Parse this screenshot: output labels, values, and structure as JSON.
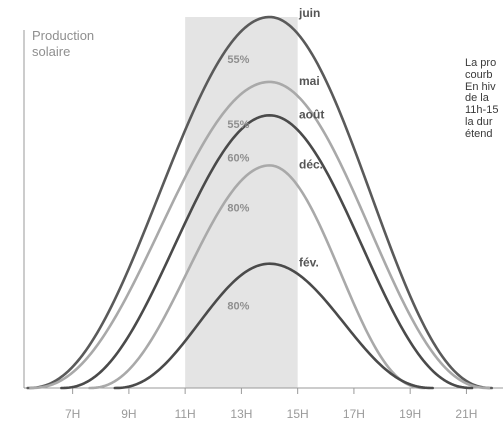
{
  "chart_data": {
    "type": "area",
    "ylabel_lines": [
      "Production",
      "solaire"
    ],
    "x_ticks": [
      {
        "label": "7H",
        "value": 7
      },
      {
        "label": "9H",
        "value": 9
      },
      {
        "label": "11H",
        "value": 11
      },
      {
        "label": "13H",
        "value": 13
      },
      {
        "label": "15H",
        "value": 15
      },
      {
        "label": "17H",
        "value": 17
      },
      {
        "label": "19H",
        "value": 19
      },
      {
        "label": "21H",
        "value": 21
      }
    ],
    "xlim": [
      5.2,
      22.3
    ],
    "ylim": [
      0,
      1.0
    ],
    "highlight_band": {
      "start": 11,
      "end": 15
    },
    "series": [
      {
        "name": "juin",
        "start": 5.4,
        "end": 21.9,
        "peak": 14.0,
        "max": 1.0,
        "color": "#5a5a5a",
        "label_pct": "55%",
        "pct_value": 0.18
      },
      {
        "name": "mai",
        "start": 5.5,
        "end": 21.8,
        "peak": 14.0,
        "max": 0.825,
        "color": "#a9a9a9",
        "label_pct": "55%",
        "pct_value": 0.82
      },
      {
        "name": "août",
        "start": 6.6,
        "end": 21.2,
        "peak": 14.0,
        "max": 0.735,
        "color": "#4a4a4a",
        "label_pct": "60%",
        "pct_value": 0.72
      },
      {
        "name": "déc.",
        "start": 7.6,
        "end": 19.5,
        "peak": 14.0,
        "max": 0.6,
        "color": "#a9a9a9",
        "label_pct": "80%",
        "pct_value": 0.48
      },
      {
        "name": "fév.",
        "start": 8.5,
        "end": 19.8,
        "peak": 14.0,
        "max": 0.335,
        "color": "#4a4a4a",
        "label_pct": "80%",
        "pct_value": 0.23
      }
    ],
    "side_text_lines": [
      "La pro",
      "courb",
      "En hiv",
      "de la",
      "11h-15",
      "la dur",
      "étend"
    ]
  },
  "colors": {
    "band": "#e4e4e4",
    "axis": "#9a9a9a",
    "tick_text": "#9a9a9a",
    "pct_text": "#8f8f8f",
    "month_text": "#555555"
  }
}
